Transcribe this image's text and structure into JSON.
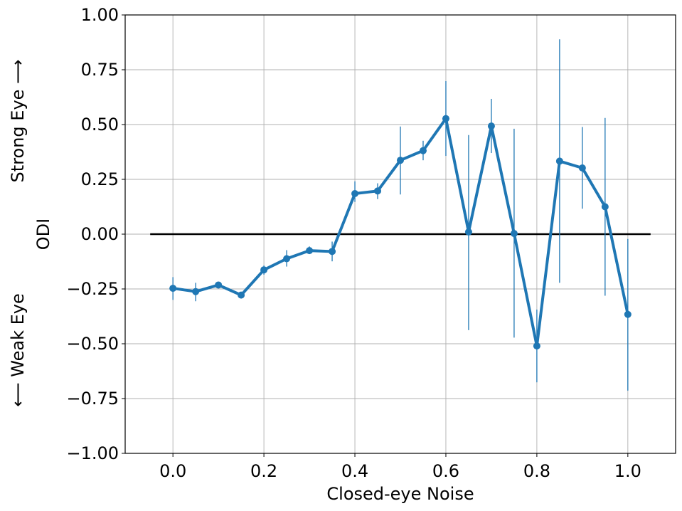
{
  "chart_data": {
    "type": "line",
    "xlabel": "Closed-eye Noise",
    "ylabel": "ODI",
    "ylabel_top": "Strong Eye ⟶",
    "ylabel_bottom": "⟵ Weak Eye",
    "xlim": [
      -0.105,
      1.105
    ],
    "ylim": [
      -1.0,
      1.0
    ],
    "grid": true,
    "x_ticks": [
      0.0,
      0.2,
      0.4,
      0.6,
      0.8,
      1.0
    ],
    "x_tick_labels": [
      "0.0",
      "0.2",
      "0.4",
      "0.6",
      "0.8",
      "1.0"
    ],
    "y_ticks": [
      1.0,
      0.75,
      0.5,
      0.25,
      0.0,
      -0.25,
      -0.5,
      -0.75,
      -1.0
    ],
    "y_tick_labels": [
      "1.00",
      "0.75",
      "0.50",
      "0.25",
      "0.00",
      "−0.25",
      "−0.50",
      "−0.75",
      "−1.00"
    ],
    "reference_line": {
      "y": 0.0,
      "x_range": [
        -0.05,
        1.05
      ],
      "color": "#000000"
    },
    "series": [
      {
        "color": "#1f77b4",
        "x": [
          0.0,
          0.05,
          0.1,
          0.15,
          0.2,
          0.25,
          0.3,
          0.35,
          0.4,
          0.45,
          0.5,
          0.55,
          0.6,
          0.65,
          0.7,
          0.75,
          0.8,
          0.85,
          0.9,
          0.95,
          1.0
        ],
        "y": [
          -0.247,
          -0.262,
          -0.232,
          -0.278,
          -0.163,
          -0.112,
          -0.075,
          -0.079,
          0.185,
          0.197,
          0.337,
          0.381,
          0.527,
          0.01,
          0.493,
          0.003,
          -0.51,
          0.333,
          0.302,
          0.125,
          -0.366
        ],
        "err_low": [
          -0.3,
          -0.306,
          -0.24,
          -0.283,
          -0.185,
          -0.148,
          -0.087,
          -0.124,
          0.147,
          0.16,
          0.181,
          0.337,
          0.357,
          -0.438,
          0.37,
          -0.472,
          -0.676,
          -0.222,
          0.116,
          -0.281,
          -0.714
        ],
        "err_high": [
          -0.196,
          -0.222,
          -0.224,
          -0.268,
          -0.143,
          -0.073,
          -0.056,
          -0.034,
          0.241,
          0.232,
          0.491,
          0.426,
          0.698,
          0.452,
          0.617,
          0.481,
          -0.344,
          0.889,
          0.489,
          0.53,
          -0.022
        ]
      }
    ]
  }
}
